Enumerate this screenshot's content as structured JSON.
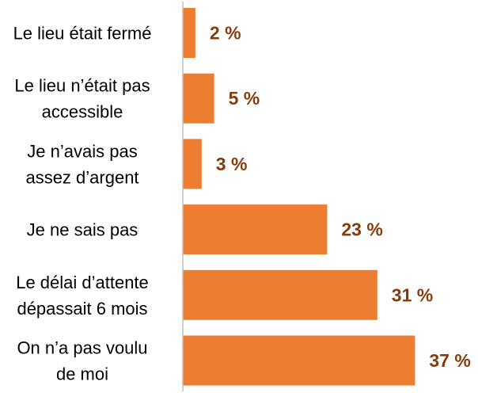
{
  "chart_data": {
    "type": "bar",
    "orientation": "horizontal",
    "categories": [
      [
        "Le lieu était fermé"
      ],
      [
        "Le lieu n’était pas",
        "accessible"
      ],
      [
        "Je n’avais pas",
        "assez d’argent"
      ],
      [
        "Je ne sais pas"
      ],
      [
        "Le délai d’attente",
        "dépassait 6 mois"
      ],
      [
        "On n’a pas voulu",
        "de moi"
      ]
    ],
    "values": [
      2,
      5,
      3,
      23,
      31,
      37
    ],
    "value_labels": [
      "2 %",
      "5 %",
      "3 %",
      "23 %",
      "31 %",
      "37 %"
    ],
    "unit": "%",
    "xlim": [
      0,
      40
    ],
    "grid": false,
    "colors": {
      "bar": "#ED7D31",
      "value_label": "#843C0C",
      "axis": "#BFBFBF",
      "category_label": "#000000"
    }
  }
}
